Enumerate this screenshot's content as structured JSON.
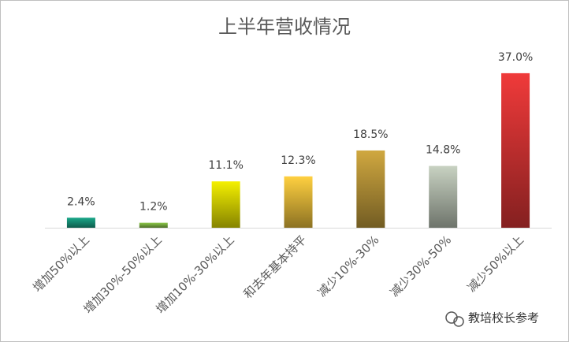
{
  "chart_data": {
    "type": "bar",
    "title": "上半年营收情况",
    "categories": [
      "增加50%以上",
      "增加30%-50%以上",
      "增加10%-30%以上",
      "和去年基本持平",
      "减少10%-30%",
      "减少30%-50%",
      "减少50%以上"
    ],
    "values": [
      2.4,
      1.2,
      11.1,
      12.3,
      18.5,
      14.8,
      37.0
    ],
    "value_labels": [
      "2.4%",
      "1.2%",
      "11.1%",
      "12.3%",
      "18.5%",
      "14.8%",
      "37.0%"
    ],
    "colors": [
      "#1aa88a",
      "#8cc84a",
      "#f4f000",
      "#ffd040",
      "#d0a840",
      "#c8d2c2",
      "#f03a3a"
    ],
    "ylim": [
      0,
      40
    ]
  },
  "watermark": "教培校长参考"
}
